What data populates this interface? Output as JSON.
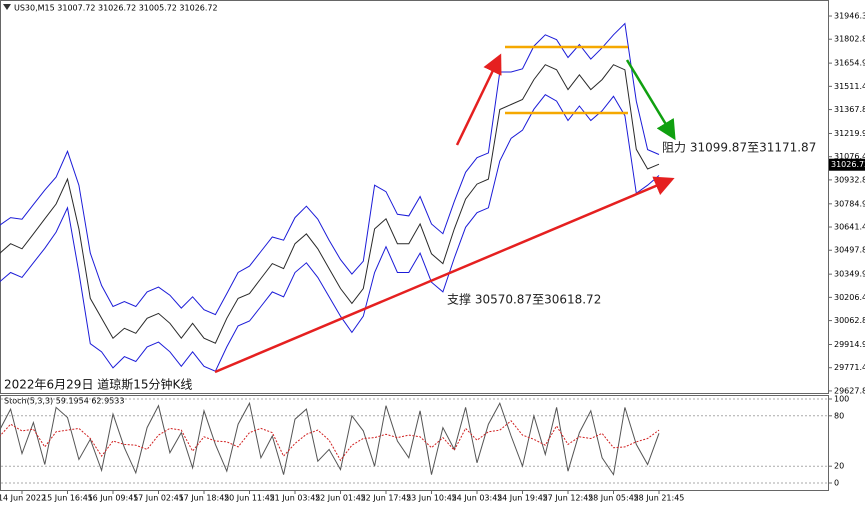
{
  "chart_data": [
    {
      "type": "line",
      "title": "US30,M15  31007.72 31026.72 31005.72 31026.72",
      "caption": "2022年6月29日 道琼斯15分钟K线",
      "annotations": [
        "阻力 31099.87至31171.87",
        "支撑 30570.87至30618.72"
      ],
      "last_price": 31026.72,
      "ylim": [
        29615,
        32033
      ],
      "yticks": [
        {
          "value": 31946.3,
          "label": "31946.30"
        },
        {
          "value": 31802.85,
          "label": "31802.85"
        },
        {
          "value": 31654.95,
          "label": "31654.95"
        },
        {
          "value": 31511.4,
          "label": "31511.40"
        },
        {
          "value": 31367.85,
          "label": "31367.85"
        },
        {
          "value": 31219.95,
          "label": "31219.95"
        },
        {
          "value": 31076.4,
          "label": "31076.40"
        },
        {
          "value": 30932.85,
          "label": "30932.85"
        },
        {
          "value": 30784.95,
          "label": "30784.95"
        },
        {
          "value": 30641.4,
          "label": "30641.40"
        },
        {
          "value": 30497.85,
          "label": "30497.85"
        },
        {
          "value": 30349.95,
          "label": "30349.95"
        },
        {
          "value": 30206.4,
          "label": "30206.40"
        },
        {
          "value": 30062.85,
          "label": "30062.85"
        },
        {
          "value": 29914.95,
          "label": "29914.95"
        },
        {
          "value": 29771.4,
          "label": "29771.40"
        },
        {
          "value": 29627.85,
          "label": "29627.85"
        }
      ],
      "series": [
        {
          "color": "#1c1cd8",
          "values": [
            30650,
            30700,
            30690,
            30780,
            30870,
            30950,
            31110,
            30900,
            30480,
            30280,
            30150,
            30180,
            30150,
            30240,
            30270,
            30220,
            30140,
            30210,
            30130,
            30100,
            30230,
            30360,
            30400,
            30490,
            30580,
            30560,
            30700,
            30770,
            30690,
            30560,
            30440,
            30350,
            30430,
            30900,
            30860,
            30720,
            30710,
            30830,
            30660,
            30600,
            30800,
            30980,
            31070,
            31100,
            31600,
            31600,
            31620,
            31760,
            31830,
            31800,
            31690,
            31770,
            31680,
            31750,
            31830,
            31900,
            31420,
            31120,
            31090
          ]
        },
        {
          "color": "#1c1cd8",
          "values": [
            30300,
            30360,
            30330,
            30420,
            30510,
            30610,
            30760,
            30360,
            29920,
            29870,
            29770,
            29840,
            29810,
            29900,
            29930,
            29870,
            29780,
            29870,
            29780,
            29750,
            29900,
            30030,
            30060,
            30150,
            30240,
            30210,
            30360,
            30420,
            30330,
            30210,
            30090,
            29990,
            30090,
            30360,
            30520,
            30360,
            30360,
            30480,
            30300,
            30240,
            30450,
            30640,
            30730,
            30760,
            31050,
            31190,
            31240,
            31370,
            31460,
            31420,
            31300,
            31390,
            31300,
            31360,
            31450,
            31330,
            30850,
            30900,
            30960
          ]
        },
        {
          "color": "#2a2a2a",
          "values": [
            30476,
            30538,
            30507,
            30599,
            30692,
            30784,
            30938,
            30630,
            30200,
            30077,
            29954,
            30015,
            29984,
            30077,
            30107,
            30046,
            29954,
            30046,
            29954,
            29923,
            30077,
            30200,
            30230,
            30323,
            30415,
            30384,
            30538,
            30599,
            30507,
            30384,
            30261,
            30169,
            30261,
            30630,
            30692,
            30538,
            30538,
            30661,
            30476,
            30415,
            30630,
            30814,
            30907,
            30938,
            31368,
            31399,
            31430,
            31553,
            31645,
            31614,
            31491,
            31583,
            31491,
            31553,
            31645,
            31614,
            31122,
            31000,
            31030
          ]
        }
      ]
    },
    {
      "type": "line",
      "title": "Stoch(5,3,3) 59.1954 62.9533",
      "ylim": [
        0,
        100
      ],
      "yticks": [
        100,
        80,
        20,
        0
      ],
      "grid": true,
      "categories": [
        null,
        null,
        "14 Jun 2022",
        null,
        null,
        null,
        "15 Jun 16:45",
        null,
        null,
        null,
        "16 Jun 09:45",
        null,
        null,
        null,
        "17 Jun 02:45",
        null,
        null,
        null,
        "17 Jun 18:45",
        null,
        null,
        null,
        "20 Jun 11:45",
        null,
        null,
        null,
        "21 Jun 03:45",
        null,
        null,
        null,
        "22 Jun 01:45",
        null,
        null,
        null,
        "22 Jun 17:45",
        null,
        null,
        null,
        "23 Jun 10:45",
        null,
        null,
        null,
        "24 Jun 03:45",
        null,
        null,
        null,
        "24 Jun 19:45",
        null,
        null,
        null,
        "27 Jun 12:45",
        null,
        null,
        null,
        "28 Jun 05:45",
        null,
        null,
        null,
        "28 Jun 21:45"
      ],
      "series": [
        {
          "color": "#555555",
          "style": "solid",
          "values": [
            62,
            88,
            35,
            72,
            22,
            90,
            78,
            28,
            52,
            15,
            82,
            42,
            12,
            66,
            92,
            36,
            60,
            18,
            86,
            46,
            14,
            70,
            95,
            30,
            56,
            10,
            76,
            88,
            26,
            40,
            16,
            80,
            62,
            20,
            92,
            50,
            30,
            86,
            10,
            66,
            40,
            90,
            24,
            70,
            95,
            56,
            20,
            80,
            34,
            90,
            14,
            60,
            86,
            30,
            10,
            90,
            46,
            22,
            59.1954
          ]
        },
        {
          "color": "#d02020",
          "style": "dashed",
          "values": [
            55,
            70,
            62,
            64,
            43,
            61,
            63,
            65,
            53,
            32,
            50,
            46,
            45,
            40,
            57,
            65,
            63,
            38,
            55,
            50,
            49,
            43,
            60,
            65,
            60,
            32,
            47,
            58,
            63,
            51,
            27,
            45,
            53,
            54,
            58,
            54,
            57,
            55,
            42,
            54,
            39,
            65,
            51,
            61,
            63,
            74,
            57,
            52,
            45,
            68,
            46,
            55,
            53,
            59,
            42,
            43,
            49,
            53,
            62.9533
          ]
        }
      ]
    }
  ]
}
